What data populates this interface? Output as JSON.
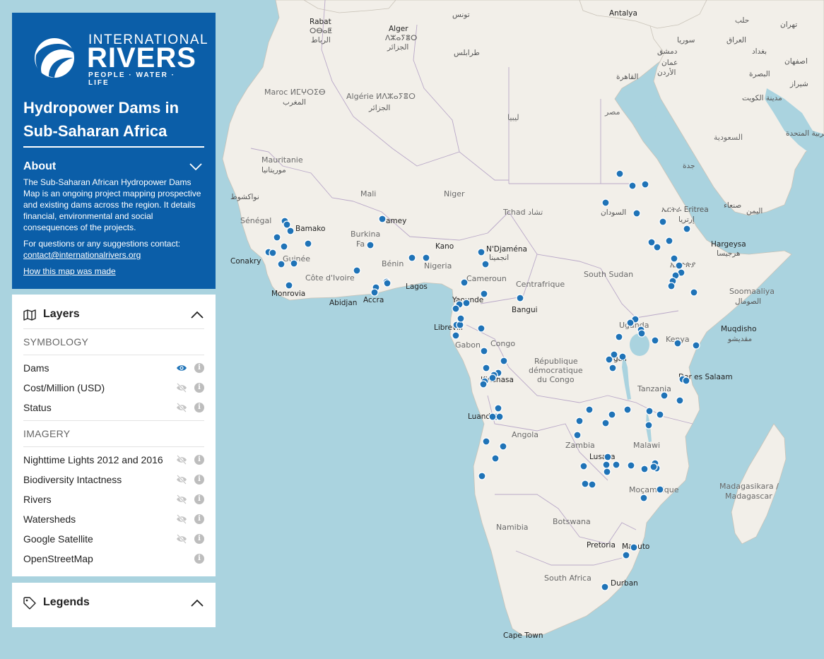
{
  "brand": {
    "line1": "INTERNATIONAL",
    "line2": "RIVERS",
    "tagline": "PEOPLE · WATER · LIFE"
  },
  "map_title": "Hydropower Dams in Sub-Saharan Africa",
  "about": {
    "heading": "About",
    "body": "The Sub-Saharan African Hydropower Dams Map is an ongoing project mapping prospective and existing dams across the region. It details financial, environmental and social consequences of the projects.",
    "contact_prompt": "For questions or any suggestions contact:",
    "contact_email": "contact@internationalrivers.org",
    "how_link": "How this map was made"
  },
  "layers_panel": {
    "title": "Layers",
    "symbology_label": "SYMBOLOGY",
    "symbology": [
      {
        "name": "Dams",
        "visible": true
      },
      {
        "name": "Cost/Million (USD)",
        "visible": false
      },
      {
        "name": "Status",
        "visible": false
      }
    ],
    "imagery_label": "IMAGERY",
    "imagery": [
      {
        "name": "Nighttime Lights 2012 and 2016",
        "visible": false
      },
      {
        "name": "Biodiversity Intactness",
        "visible": false
      },
      {
        "name": "Rivers",
        "visible": false
      },
      {
        "name": "Watersheds",
        "visible": false
      },
      {
        "name": "Google Satellite",
        "visible": false
      },
      {
        "name": "OpenStreetMap",
        "visible": true
      }
    ]
  },
  "legends_panel": {
    "title": "Legends"
  },
  "map": {
    "colors": {
      "water": "#aad3df",
      "land": "#f2efe9",
      "border": "#b9a8c8",
      "dam": "#1f73b7",
      "panel": "#0b5ea8"
    },
    "labels": {
      "tunis": "تونس",
      "rabat": "Rabat",
      "rabat_tif": "ⵔⴱⴰⵟ",
      "rabat_ar": "الرباط",
      "algiers": "Alger",
      "algiers_tif": "ⴷⵣⴰⵢⴻⵔ",
      "algiers_ar": "الجزائر",
      "tripoli": "طرابلس",
      "antalya": "Antalya",
      "halab": "حلب",
      "damascus": "دمشق",
      "syria": "سوريا",
      "baghdad": "بغداد",
      "tehran": "تهران",
      "isfahan": "اصفهان",
      "basra": "البصرة",
      "kuwait": "مدينة الكويت",
      "shiraz": "شیراز",
      "amman": "عمان",
      "jordan": "الأردن",
      "iraq": "العراق",
      "cairo": "القاهرة",
      "egypt": "مصر",
      "libya": "ليبيا",
      "saudi": "السعودية",
      "jeddah": "جدة",
      "uae": "مارات العربية المتحدة",
      "morocco": "Maroc ⵍⵎⵖⵔⵉⴱ",
      "morocco_ar": "المغرب",
      "algeria": "Algérie ⵍⴷⵣⴰⵢⴻⵔ",
      "algeria_ar": "الجزائر",
      "mauritania": "Mauritanie",
      "mauritania_ar": "موريتانيا",
      "nouakchott": "نواكشوط",
      "mali": "Mali",
      "niger": "Niger",
      "chad": "Tchad تشاد",
      "sudan": "السودان",
      "eritrea": "ኤርትራ Eritrea",
      "eritrea_ar": "إرتريا",
      "yemen": "اليمن",
      "sanaa": "صنعاء",
      "hargeysa": "Hargeysa",
      "hargeysa_ar": "هرجيسا",
      "senegal": "Sénégal",
      "bamako": "Bamako",
      "burkina": "Burkina",
      "burkina2": "Fa",
      "niamey": "amey",
      "guinee": "Guinée",
      "conakry": "Conakry",
      "monrovia": "Monrovia",
      "cote": "Côte d'Ivoire",
      "abidjan": "Abidjan",
      "accra": "Accra",
      "lagos": "Lagos",
      "benin": "Bénin",
      "kano": "Kano",
      "nigeria": "Nigeria",
      "ndjamena": "N'Djaména",
      "ndjamena_ar": "انجمينا",
      "cameroun": "Cameroun",
      "yaounde": "Yaounde",
      "centrafrique": "Centrafrique",
      "bangui": "Bangui",
      "southsudan": "South Sudan",
      "ethiopia": "ኢትዮጵያ",
      "somalia": "Soomaaliya",
      "somalia_ar": "الصومال",
      "libreville": "Librevill",
      "gabon": "Gabon",
      "congo": "Congo",
      "kinshasa": "Kinshasa",
      "rdc1": "République",
      "rdc2": "démocratique",
      "rdc3": "du Congo",
      "uganda": "Uganda",
      "kigali": "gali",
      "kenya": "Kenya",
      "mogadishu": "Muqdisho",
      "mogadishu_ar": "مقديشو",
      "tanzania": "Tanzania",
      "daressalaam": "Dar es Salaam",
      "luanda": "Luanda",
      "angola": "Angola",
      "zambia": "Zambia",
      "lusaka": "Lusaka",
      "malawi": "Malawi",
      "mozambique": "Moçambique",
      "madagascar": "Madagasikara /",
      "madagascar2": "Madagascar",
      "namibia": "Namibia",
      "botswana": "Botswana",
      "pretoria": "Pretoria",
      "maputo": "Maputo",
      "southafrica": "South Africa",
      "durban": "Durban",
      "capetown": "Cape Town"
    }
  }
}
